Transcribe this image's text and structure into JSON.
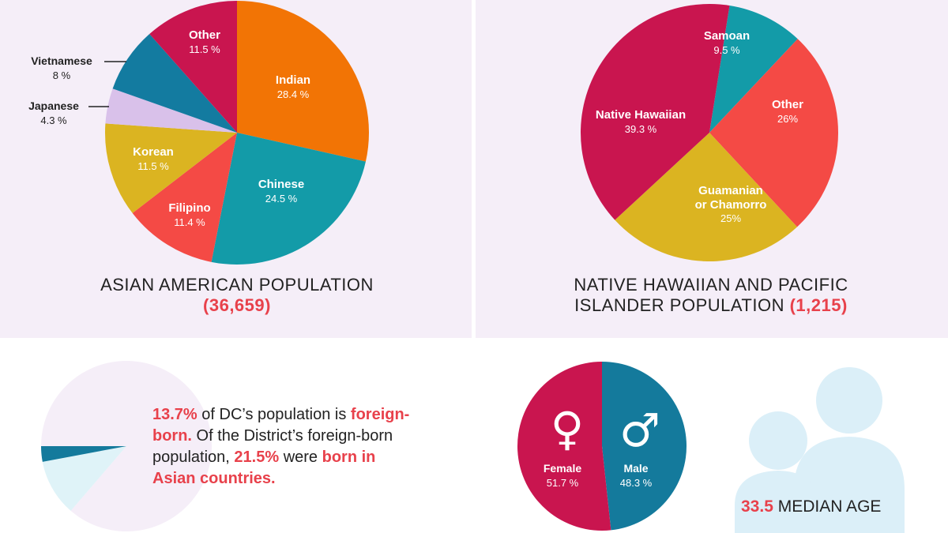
{
  "chart_data": [
    {
      "type": "pie",
      "title": "ASIAN AMERICAN POPULATION",
      "total": "(36,659)",
      "slices": [
        {
          "label": "Indian",
          "pct": "28.4 %",
          "value": 28.4,
          "color": "#f27405"
        },
        {
          "label": "Chinese",
          "pct": "24.5 %",
          "value": 24.5,
          "color": "#139ba8"
        },
        {
          "label": "Filipino",
          "pct": "11.4 %",
          "value": 11.4,
          "color": "#f44a45"
        },
        {
          "label": "Korean",
          "pct": "11.5 %",
          "value": 11.5,
          "color": "#dbb421"
        },
        {
          "label": "Japanese",
          "pct": "4.3 %",
          "value": 4.3,
          "color": "#d9c1ea"
        },
        {
          "label": "Vietnamese",
          "pct": "8 %",
          "value": 8,
          "color": "#137ba0"
        },
        {
          "label": "Other",
          "pct": "11.5 %",
          "value": 11.5,
          "color": "#c9154f"
        }
      ]
    },
    {
      "type": "pie",
      "title_line1": "NATIVE HAWAIIAN AND PACIFIC",
      "title_line2": "ISLANDER POPULATION",
      "total": "(1,215)",
      "slices": [
        {
          "label": "Samoan",
          "pct": "9.5 %",
          "value": 9.5,
          "color": "#139ba8"
        },
        {
          "label": "Other",
          "pct": "26%",
          "value": 26,
          "color": "#f44a45"
        },
        {
          "label_line1": "Guamanian",
          "label_line2": "or Chamorro",
          "pct": "25%",
          "value": 25,
          "color": "#dbb421"
        },
        {
          "label": "Native Hawaiian",
          "pct": "39.3 %",
          "value": 39.3,
          "color": "#c9154f"
        }
      ]
    },
    {
      "type": "pie",
      "slices": [
        {
          "value": 13.7,
          "color": "#dff3f8"
        },
        {
          "value": 86.3,
          "color": "#f5eef8"
        }
      ],
      "sub_slice": {
        "value": 21.5,
        "color": "#147a9c"
      }
    },
    {
      "type": "pie",
      "slices": [
        {
          "label": "Male",
          "pct": "48.3 %",
          "value": 48.3,
          "symbol": "♂",
          "color": "#147a9c"
        },
        {
          "label": "Female",
          "pct": "51.7 %",
          "value": 51.7,
          "symbol": "♀",
          "color": "#c9154f"
        }
      ]
    }
  ],
  "foreign": {
    "pct": "13.7%",
    "t1": " of DC’s population is",
    "hl1": "foreign-born.",
    "t2": " Of the District’s foreign-born population, ",
    "pct2": "21.5%",
    "t3": "were ",
    "hl2": "born in Asian countries."
  },
  "median": {
    "value": "33.5",
    "label": " MEDIAN AGE"
  },
  "colors": {
    "accent": "#e8414b",
    "panel_bg": "#f5eef8",
    "people_icon": "#dbeff8"
  }
}
